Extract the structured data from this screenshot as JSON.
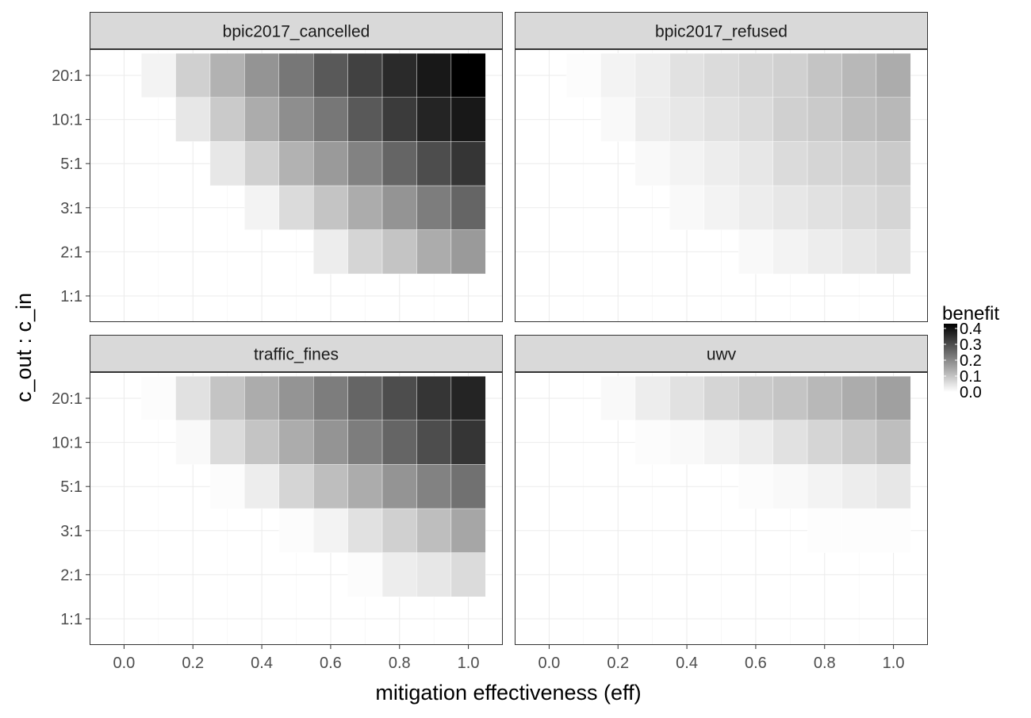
{
  "chart_data": {
    "type": "heatmap",
    "title": "",
    "xlabel": "mitigation effectiveness (eff)",
    "ylabel": "c_out : c_in",
    "x": [
      0.0,
      0.1,
      0.2,
      0.3,
      0.4,
      0.5,
      0.6,
      0.7,
      0.8,
      0.9,
      1.0
    ],
    "x_ticks": [
      "0.0",
      "0.2",
      "0.4",
      "0.6",
      "0.8",
      "1.0"
    ],
    "y": [
      "1:1",
      "2:1",
      "3:1",
      "5:1",
      "10:1",
      "20:1"
    ],
    "xlim": [
      -0.1,
      1.1
    ],
    "grid": true,
    "legend": {
      "title": "benefit",
      "placement": "right",
      "range": [
        0.0,
        0.43
      ],
      "ticks": [
        "0.0",
        "0.1",
        "0.2",
        "0.3",
        "0.4"
      ],
      "colors": [
        "#ffffff",
        "#000000"
      ]
    },
    "facets": [
      {
        "name": "bpic2017_cancelled",
        "values": [
          [
            null,
            null,
            null,
            null,
            null,
            null,
            null,
            null,
            null,
            null,
            null
          ],
          [
            null,
            null,
            null,
            null,
            null,
            null,
            0.03,
            0.07,
            0.1,
            0.14,
            0.17
          ],
          [
            null,
            null,
            null,
            null,
            0.02,
            0.06,
            0.1,
            0.14,
            0.18,
            0.22,
            0.26
          ],
          [
            null,
            null,
            null,
            0.04,
            0.08,
            0.13,
            0.17,
            0.21,
            0.26,
            0.3,
            0.34
          ],
          [
            null,
            null,
            0.04,
            0.09,
            0.14,
            0.19,
            0.23,
            0.28,
            0.33,
            0.37,
            0.39
          ],
          [
            null,
            0.02,
            0.08,
            0.13,
            0.18,
            0.23,
            0.28,
            0.32,
            0.36,
            0.39,
            0.43
          ]
        ]
      },
      {
        "name": "bpic2017_refused",
        "values": [
          [
            null,
            null,
            null,
            null,
            null,
            null,
            null,
            null,
            null,
            null,
            null
          ],
          [
            null,
            null,
            null,
            null,
            null,
            null,
            0.01,
            0.02,
            0.03,
            0.04,
            0.05
          ],
          [
            null,
            null,
            null,
            null,
            0.01,
            0.02,
            0.03,
            0.04,
            0.05,
            0.06,
            0.07
          ],
          [
            null,
            null,
            null,
            0.01,
            0.02,
            0.03,
            0.04,
            0.06,
            0.07,
            0.08,
            0.09
          ],
          [
            null,
            null,
            0.01,
            0.03,
            0.04,
            0.05,
            0.06,
            0.08,
            0.09,
            0.11,
            0.12
          ],
          [
            null,
            0.005,
            0.02,
            0.03,
            0.05,
            0.06,
            0.07,
            0.08,
            0.1,
            0.12,
            0.14
          ]
        ]
      },
      {
        "name": "traffic_fines",
        "values": [
          [
            null,
            null,
            null,
            null,
            null,
            null,
            null,
            null,
            null,
            null,
            null
          ],
          [
            null,
            null,
            null,
            null,
            null,
            null,
            null,
            0.005,
            0.03,
            0.04,
            0.06
          ],
          [
            null,
            null,
            null,
            null,
            null,
            0.005,
            0.02,
            0.05,
            0.08,
            0.11,
            0.15
          ],
          [
            null,
            null,
            null,
            0.005,
            0.03,
            0.07,
            0.11,
            0.14,
            0.18,
            0.21,
            0.24
          ],
          [
            null,
            null,
            0.01,
            0.06,
            0.1,
            0.14,
            0.18,
            0.22,
            0.26,
            0.3,
            0.34
          ],
          [
            null,
            0.005,
            0.05,
            0.1,
            0.14,
            0.18,
            0.22,
            0.26,
            0.3,
            0.34,
            0.37
          ]
        ]
      },
      {
        "name": "uwv",
        "values": [
          [
            null,
            null,
            null,
            null,
            null,
            null,
            null,
            null,
            null,
            null,
            null
          ],
          [
            null,
            null,
            null,
            null,
            null,
            null,
            null,
            null,
            null,
            null,
            null
          ],
          [
            null,
            null,
            null,
            null,
            null,
            null,
            null,
            null,
            0.003,
            0.003,
            0.003
          ],
          [
            null,
            null,
            null,
            null,
            null,
            null,
            0.005,
            0.01,
            0.02,
            0.03,
            0.04
          ],
          [
            null,
            null,
            null,
            0.005,
            0.01,
            0.02,
            0.03,
            0.05,
            0.07,
            0.09,
            0.11
          ],
          [
            null,
            null,
            0.01,
            0.03,
            0.05,
            0.07,
            0.09,
            0.1,
            0.12,
            0.14,
            0.16
          ]
        ]
      }
    ]
  }
}
